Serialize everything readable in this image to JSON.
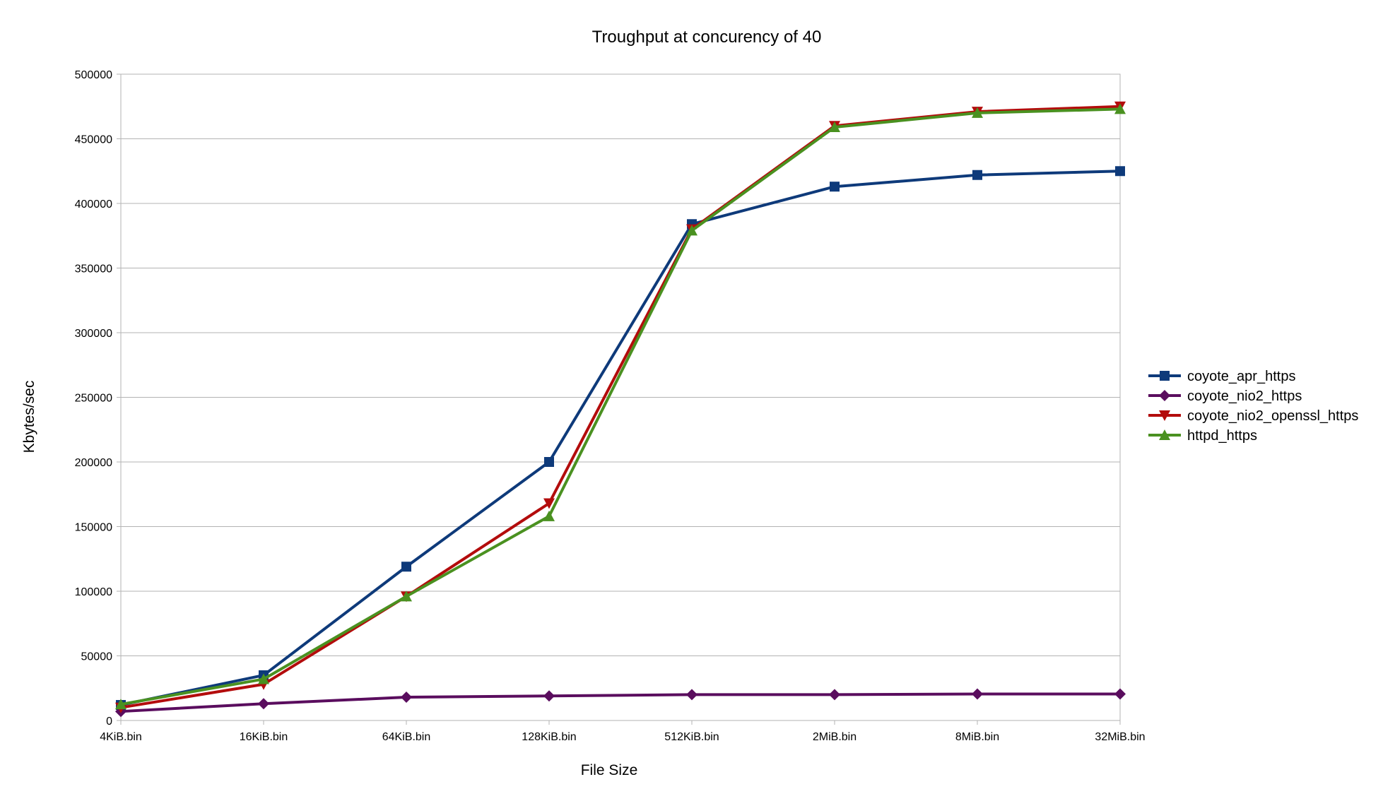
{
  "chart_data": {
    "type": "line",
    "title": "Troughput at concurency of 40",
    "xlabel": "File Size",
    "ylabel": "Kbytes/sec",
    "categories": [
      "4KiB.bin",
      "16KiB.bin",
      "64KiB.bin",
      "128KiB.bin",
      "512KiB.bin",
      "2MiB.bin",
      "8MiB.bin",
      "32MiB.bin"
    ],
    "ylim": [
      0,
      500000
    ],
    "yticks": [
      0,
      50000,
      100000,
      150000,
      200000,
      250000,
      300000,
      350000,
      400000,
      450000,
      500000
    ],
    "grid": true,
    "legend_position": "right",
    "series": [
      {
        "name": "coyote_apr_https",
        "color": "#0e3a7a",
        "marker": "square",
        "values": [
          12000,
          35000,
          119000,
          200000,
          384000,
          413000,
          422000,
          425000
        ]
      },
      {
        "name": "coyote_nio2_https",
        "color": "#5a0d5e",
        "marker": "diamond",
        "values": [
          7000,
          13000,
          18000,
          19000,
          20000,
          20000,
          20500,
          20500
        ]
      },
      {
        "name": "coyote_nio2_openssl_https",
        "color": "#b30c0c",
        "marker": "triangle-down",
        "values": [
          10000,
          28000,
          96000,
          168000,
          380000,
          460000,
          471000,
          475000
        ]
      },
      {
        "name": "httpd_https",
        "color": "#4a9120",
        "marker": "triangle-up",
        "values": [
          12500,
          32000,
          96000,
          158000,
          379000,
          459000,
          470000,
          473000
        ]
      }
    ]
  }
}
